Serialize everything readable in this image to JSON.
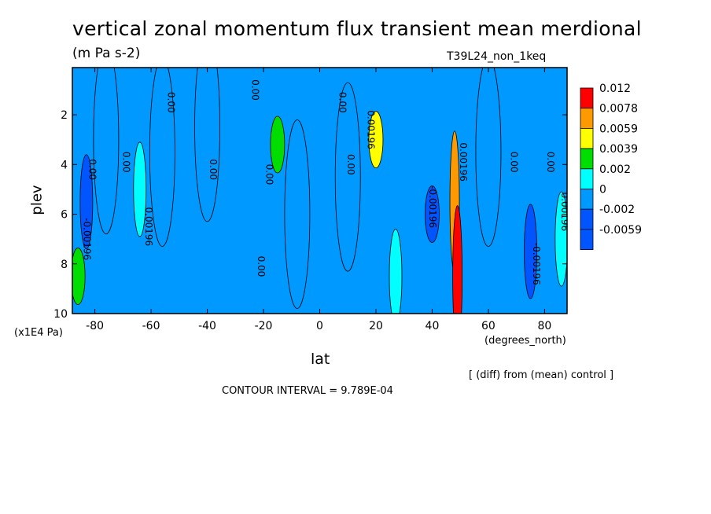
{
  "chart_data": {
    "type": "heatmap",
    "title": "vertical zonal momentum flux transient mean merdional",
    "subtitle": "(m Pa s-2)",
    "dataset_label": "T39L24_non_1keq",
    "xlabel": "lat",
    "x_units": "(degrees_north)",
    "ylabel": "plev",
    "y_units": "(x1E4 Pa)",
    "note": "[ (diff) from (mean) control ]",
    "contour_interval_text": "CONTOUR INTERVAL = 9.789E-04",
    "xlim": [
      -88,
      88
    ],
    "ylim": [
      10,
      0.1
    ],
    "x_ticks": [
      "-80",
      "-60",
      "-40",
      "-20",
      "0",
      "20",
      "40",
      "60",
      "80"
    ],
    "y_ticks": [
      "2",
      "4",
      "6",
      "8",
      "10"
    ],
    "legend": {
      "labels": [
        "0.012",
        "0.0078",
        "0.0059",
        "0.0039",
        "0.002",
        "0",
        "-0.002",
        "-0.0059"
      ],
      "colors": [
        "#ff0000",
        "#ff9900",
        "#ffff00",
        "#00dd00",
        "#00ffff",
        "#0099ff",
        "#0055ff",
        "#0055ff"
      ]
    },
    "background_color": "#0099ff",
    "features": [
      {
        "lat": -86,
        "plev": 8.5,
        "value": 0.0039
      },
      {
        "lat": -83,
        "plev": 5.5,
        "value": -0.002
      },
      {
        "lat": -76,
        "plev": 3.0,
        "value": 0
      },
      {
        "lat": -64,
        "plev": 5.0,
        "value": 0.002
      },
      {
        "lat": -56,
        "plev": 3.5,
        "value": 0
      },
      {
        "lat": -40,
        "plev": 2.5,
        "value": 0
      },
      {
        "lat": -15,
        "plev": 3.2,
        "value": 0.0039
      },
      {
        "lat": -8,
        "plev": 6.0,
        "value": 0
      },
      {
        "lat": 10,
        "plev": 4.5,
        "value": 0
      },
      {
        "lat": 20,
        "plev": 3.0,
        "value": 0.0059
      },
      {
        "lat": 27,
        "plev": 8.5,
        "value": 0.002
      },
      {
        "lat": 40,
        "plev": 6.0,
        "value": -0.0059
      },
      {
        "lat": 48,
        "plev": 5.5,
        "value": 0.0078
      },
      {
        "lat": 49,
        "plev": 8.5,
        "value": 0.012
      },
      {
        "lat": 60,
        "plev": 3.5,
        "value": 0
      },
      {
        "lat": 75,
        "plev": 7.5,
        "value": -0.002
      },
      {
        "lat": 86,
        "plev": 7.0,
        "value": 0.002
      }
    ],
    "contour_labels": [
      {
        "text": "0.00",
        "lat": -82,
        "plev": 4.2
      },
      {
        "text": "-0.00196",
        "lat": -84,
        "plev": 7.0
      },
      {
        "text": "0.00",
        "lat": -70,
        "plev": 3.9
      },
      {
        "text": "0.00196",
        "lat": -62,
        "plev": 6.5
      },
      {
        "text": "0.00",
        "lat": -54,
        "plev": 1.5
      },
      {
        "text": "0.00",
        "lat": -39,
        "plev": 4.2
      },
      {
        "text": "0.00",
        "lat": -24,
        "plev": 1.0
      },
      {
        "text": "0.00",
        "lat": -19,
        "plev": 4.4
      },
      {
        "text": "0.00",
        "lat": -22,
        "plev": 8.1
      },
      {
        "text": "0.00",
        "lat": 7,
        "plev": 1.5
      },
      {
        "text": "0.00196",
        "lat": 17,
        "plev": 2.6
      },
      {
        "text": "0.00",
        "lat": 10,
        "plev": 4.0
      },
      {
        "text": "-0.00196",
        "lat": 39,
        "plev": 5.7
      },
      {
        "text": "0.00196",
        "lat": 50,
        "plev": 3.9
      },
      {
        "text": "0.00",
        "lat": 68,
        "plev": 3.9
      },
      {
        "text": "-0.00196",
        "lat": 76,
        "plev": 8.0
      },
      {
        "text": "0.00",
        "lat": 81,
        "plev": 3.9
      },
      {
        "text": "0.00196",
        "lat": 86,
        "plev": 5.9
      }
    ]
  }
}
